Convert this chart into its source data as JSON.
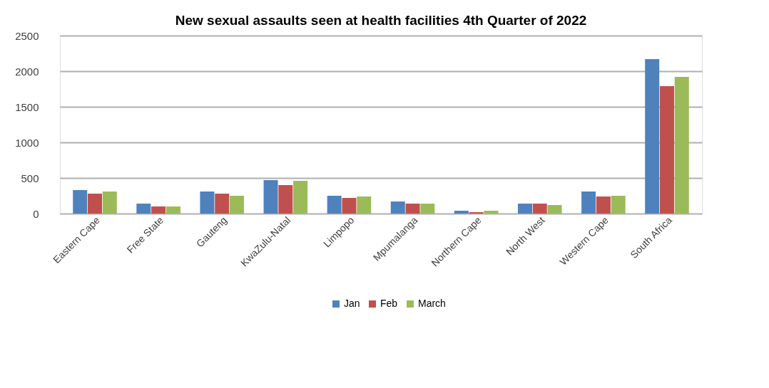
{
  "chart_data": {
    "type": "bar",
    "title": "New sexual assaults seen at health facilities 4th Quarter of 2022",
    "categories": [
      "Eastern Cape",
      "Free State",
      "Gauteng",
      "KwaZulu-Natal",
      "Limpopo",
      "Mpumalanga",
      "Northern Cape",
      "North West",
      "Western Cape",
      "South Africa"
    ],
    "series": [
      {
        "name": "Jan",
        "color": "#4f81bd",
        "values": [
          330,
          140,
          310,
          470,
          250,
          170,
          40,
          140,
          310,
          2170
        ]
      },
      {
        "name": "Feb",
        "color": "#c0504d",
        "values": [
          280,
          100,
          280,
          400,
          220,
          140,
          20,
          140,
          240,
          1790
        ]
      },
      {
        "name": "March",
        "color": "#9bbb59",
        "values": [
          310,
          100,
          250,
          460,
          240,
          140,
          40,
          120,
          250,
          1920
        ]
      }
    ],
    "ylim": [
      0,
      2500
    ],
    "yticks": [
      0,
      500,
      1000,
      1500,
      2000,
      2500
    ],
    "grid": "y",
    "legend": "bottom"
  }
}
